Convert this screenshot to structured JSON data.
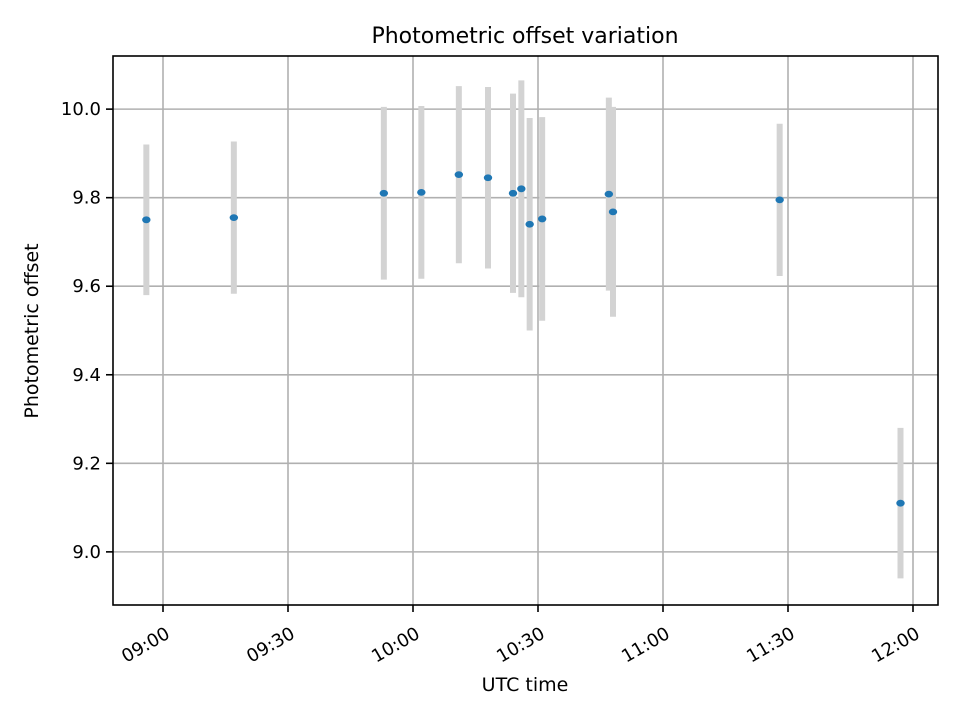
{
  "chart_data": {
    "type": "scatter",
    "title": "Photometric offset variation",
    "xlabel": "UTC time",
    "ylabel": "Photometric offset",
    "x_ticks": [
      "09:00",
      "09:30",
      "10:00",
      "10:30",
      "11:00",
      "11:30",
      "12:00"
    ],
    "y_ticks": [
      "9.0",
      "9.2",
      "9.4",
      "9.6",
      "9.8",
      "10.0"
    ],
    "xlim": [
      "08:48",
      "12:06"
    ],
    "ylim": [
      8.88,
      10.12
    ],
    "grid": true,
    "colors": {
      "marker": "#1f77b4",
      "errorbar": "#d3d3d3",
      "grid": "#b0b0b0",
      "axis": "#000000"
    },
    "points": [
      {
        "x": "08:56",
        "y": 9.75,
        "yerr": 0.17
      },
      {
        "x": "09:17",
        "y": 9.755,
        "yerr": 0.172
      },
      {
        "x": "09:53",
        "y": 9.81,
        "yerr": 0.195
      },
      {
        "x": "10:02",
        "y": 9.812,
        "yerr": 0.195
      },
      {
        "x": "10:11",
        "y": 9.852,
        "yerr": 0.2
      },
      {
        "x": "10:18",
        "y": 9.845,
        "yerr": 0.205
      },
      {
        "x": "10:24",
        "y": 9.81,
        "yerr": 0.225
      },
      {
        "x": "10:26",
        "y": 9.82,
        "yerr": 0.245
      },
      {
        "x": "10:28",
        "y": 9.74,
        "yerr": 0.24
      },
      {
        "x": "10:31",
        "y": 9.752,
        "yerr": 0.23
      },
      {
        "x": "10:47",
        "y": 9.808,
        "yerr": 0.218
      },
      {
        "x": "10:48",
        "y": 9.768,
        "yerr": 0.237
      },
      {
        "x": "11:28",
        "y": 9.795,
        "yerr": 0.172
      },
      {
        "x": "11:57",
        "y": 9.11,
        "yerr": 0.17
      }
    ]
  }
}
